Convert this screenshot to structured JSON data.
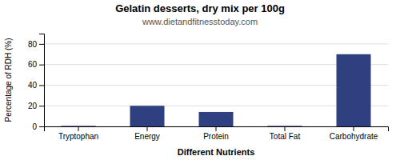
{
  "chart_data": {
    "type": "bar",
    "title": "Gelatin desserts, dry mix per 100g",
    "subtitle": "www.dietandfitnesstoday.com",
    "xlabel": "Different Nutrients",
    "ylabel": "Percentage of RDH (%)",
    "categories": [
      "Tryptophan",
      "Energy",
      "Protein",
      "Total Fat",
      "Carbohydrate"
    ],
    "values": [
      0.5,
      20,
      14,
      0.5,
      70
    ],
    "color": "#2e4080",
    "ylim": [
      0,
      90
    ],
    "yticks": [
      0,
      20,
      40,
      60,
      80
    ],
    "grid": true
  }
}
